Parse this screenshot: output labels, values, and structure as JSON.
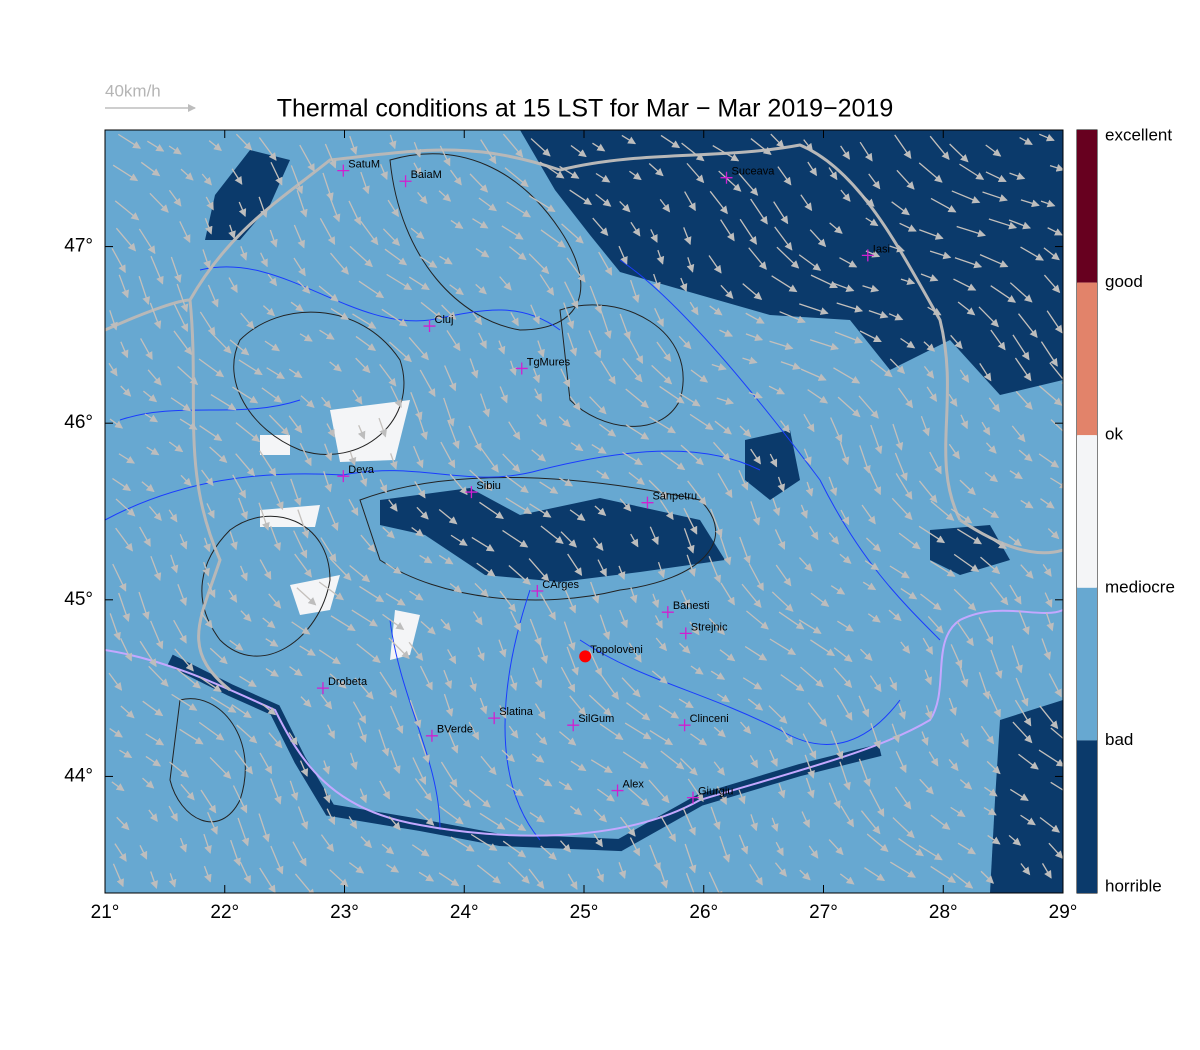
{
  "title": "Thermal conditions at 15 LST for Mar − Mar  2019−2019",
  "wind_label": "40km/h",
  "xlim": [
    21,
    29
  ],
  "ylim": [
    43.34,
    47.66
  ],
  "xticks": [
    {
      "value": 21,
      "label": "21°"
    },
    {
      "value": 22,
      "label": "22°"
    },
    {
      "value": 23,
      "label": "23°"
    },
    {
      "value": 24,
      "label": "24°"
    },
    {
      "value": 25,
      "label": "25°"
    },
    {
      "value": 26,
      "label": "26°"
    },
    {
      "value": 27,
      "label": "27°"
    },
    {
      "value": 28,
      "label": "28°"
    },
    {
      "value": 29,
      "label": "29°"
    }
  ],
  "yticks": [
    {
      "value": 44,
      "label": "44°"
    },
    {
      "value": 45,
      "label": "45°"
    },
    {
      "value": 46,
      "label": "46°"
    },
    {
      "value": 47,
      "label": "47°"
    }
  ],
  "cities": [
    {
      "name": "SatuM",
      "lon": 22.99,
      "lat": 47.43
    },
    {
      "name": "BaiaM",
      "lon": 23.51,
      "lat": 47.37
    },
    {
      "name": "Suceava",
      "lon": 26.19,
      "lat": 47.39
    },
    {
      "name": "Iasi",
      "lon": 27.37,
      "lat": 46.95
    },
    {
      "name": "Cluj",
      "lon": 23.71,
      "lat": 46.55
    },
    {
      "name": "TgMures",
      "lon": 24.48,
      "lat": 46.31
    },
    {
      "name": "Deva",
      "lon": 22.99,
      "lat": 45.7
    },
    {
      "name": "Sibiu",
      "lon": 24.06,
      "lat": 45.61
    },
    {
      "name": "Sanpetru",
      "lon": 25.53,
      "lat": 45.55
    },
    {
      "name": "CArges",
      "lon": 24.61,
      "lat": 45.05
    },
    {
      "name": "Banesti",
      "lon": 25.7,
      "lat": 44.93
    },
    {
      "name": "Strejnic",
      "lon": 25.85,
      "lat": 44.81
    },
    {
      "name": "Topoloveni",
      "lon": 25.01,
      "lat": 44.68
    },
    {
      "name": "Drobeta",
      "lon": 22.82,
      "lat": 44.5
    },
    {
      "name": "Slatina",
      "lon": 24.25,
      "lat": 44.33
    },
    {
      "name": "SilGum",
      "lon": 24.91,
      "lat": 44.29
    },
    {
      "name": "Clinceni",
      "lon": 25.84,
      "lat": 44.29
    },
    {
      "name": "BVerde",
      "lon": 23.73,
      "lat": 44.23
    },
    {
      "name": "Alex",
      "lon": 25.28,
      "lat": 43.92
    },
    {
      "name": "Giurgiu",
      "lon": 25.91,
      "lat": 43.88
    }
  ],
  "colorbar": {
    "labels": [
      "excellent",
      "good",
      "ok",
      "mediocre",
      "bad",
      "horrible"
    ],
    "colors": [
      "#67001f",
      "#e2836a",
      "#f4f5f7",
      "#67a8d1",
      "#0b3a6b"
    ]
  }
}
